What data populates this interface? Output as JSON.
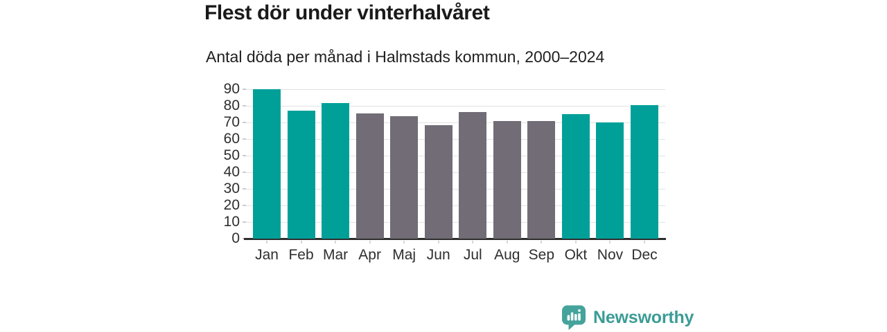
{
  "header": {
    "title": "Flest dör under vinterhalvåret",
    "subtitle": "Antal döda per månad i Halmstads kommun, 2000–2024"
  },
  "chart_data": {
    "type": "bar",
    "title": "Flest dör under vinterhalvåret",
    "subtitle": "Antal döda per månad i Halmstads kommun, 2000–2024",
    "categories": [
      "Jan",
      "Feb",
      "Mar",
      "Apr",
      "Maj",
      "Jun",
      "Jul",
      "Aug",
      "Sep",
      "Okt",
      "Nov",
      "Dec"
    ],
    "values": [
      89.9,
      77,
      81.8,
      75.3,
      73.7,
      68.3,
      76.3,
      70.7,
      71,
      75.1,
      70,
      80.4
    ],
    "bar_color_keys": [
      "teal",
      "teal",
      "teal",
      "gray",
      "gray",
      "gray",
      "gray",
      "gray",
      "gray",
      "teal",
      "teal",
      "teal"
    ],
    "colors": {
      "teal": "#00a099",
      "gray": "#716c75"
    },
    "xlabel": "",
    "ylabel": "",
    "ylim": [
      0,
      90
    ],
    "yticks": [
      0,
      10,
      20,
      30,
      40,
      50,
      60,
      70,
      80,
      90
    ],
    "grid": true,
    "legend": false
  },
  "footer": {
    "brand": "Newsworthy",
    "brand_color": "#3b9c96",
    "logo_color": "#44a39b",
    "logo_icon": "bar-chart-speech-bubble"
  }
}
